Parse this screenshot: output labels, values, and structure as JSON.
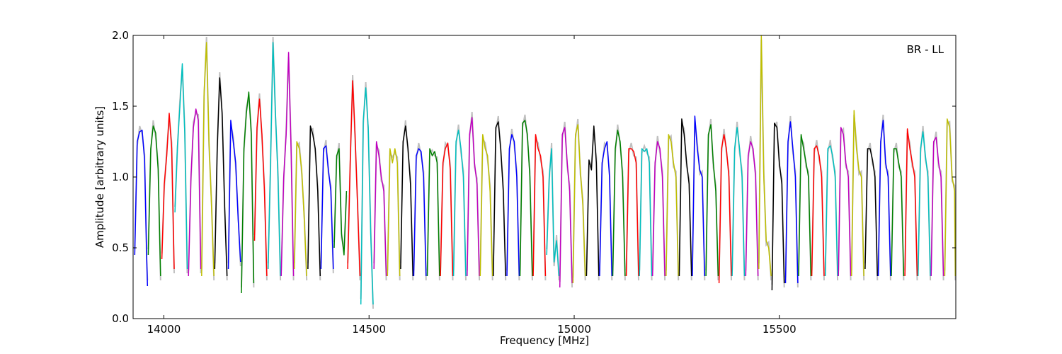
{
  "chart_data": {
    "type": "line",
    "title": "",
    "annotation": "BR - LL",
    "xlabel": "Frequency [MHz]",
    "ylabel": "Amplitude [arbitrary units]",
    "xlim": [
      13925,
      15930
    ],
    "ylim": [
      0.0,
      2.0
    ],
    "xticks": [
      14000,
      14500,
      15000,
      15500
    ],
    "xtick_labels": [
      "14000",
      "14500",
      "15000",
      "15500"
    ],
    "yticks": [
      0.0,
      0.5,
      1.0,
      1.5,
      2.0
    ],
    "ytick_labels": [
      "0.0",
      "0.5",
      "1.0",
      "1.5",
      "2.0"
    ],
    "grid": false,
    "legend": "none",
    "background_trace": {
      "color": "#c0c0c0",
      "description_value": "raw amplitude, light grey"
    },
    "colors": [
      "#0000ff",
      "#008000",
      "#ff0000",
      "#00bfbf",
      "#bf00bf",
      "#bfbf00",
      "#000000"
    ],
    "channel_width_mhz": 32,
    "series": [
      {
        "color": "#0000ff",
        "x": [
          13929,
          13935,
          13941,
          13947,
          13953,
          13958,
          13960
        ],
        "y": [
          0.45,
          1.25,
          1.32,
          1.33,
          1.12,
          0.45,
          0.23
        ]
      },
      {
        "color": "#008000",
        "x": [
          13962,
          13968,
          13974,
          13980,
          13986,
          13992
        ],
        "y": [
          0.45,
          1.2,
          1.36,
          1.31,
          1.05,
          0.3
        ]
      },
      {
        "color": "#ff0000",
        "x": [
          13995,
          14001,
          14007,
          14013,
          14019,
          14025
        ],
        "y": [
          0.42,
          0.95,
          1.15,
          1.45,
          1.2,
          0.35
        ]
      },
      {
        "color": "#00bfbf",
        "x": [
          14027,
          14033,
          14039,
          14045,
          14051,
          14057
        ],
        "y": [
          0.75,
          1.22,
          1.5,
          1.8,
          1.3,
          0.35
        ]
      },
      {
        "color": "#bf00bf",
        "x": [
          14060,
          14066,
          14072,
          14078,
          14084,
          14090
        ],
        "y": [
          0.3,
          1.0,
          1.35,
          1.48,
          1.4,
          0.35
        ]
      },
      {
        "color": "#bfbf00",
        "x": [
          14092,
          14098,
          14104,
          14110,
          14116,
          14122
        ],
        "y": [
          0.3,
          1.6,
          1.95,
          1.25,
          0.8,
          0.3
        ]
      },
      {
        "color": "#000000",
        "x": [
          14124,
          14130,
          14136,
          14142,
          14148,
          14154
        ],
        "y": [
          0.35,
          1.2,
          1.7,
          1.45,
          0.8,
          0.3
        ]
      },
      {
        "color": "#0000ff",
        "x": [
          14157,
          14163,
          14169,
          14175,
          14181,
          14187
        ],
        "y": [
          0.35,
          1.4,
          1.25,
          1.1,
          0.7,
          0.4
        ]
      },
      {
        "color": "#008000",
        "x": [
          14189,
          14195,
          14201,
          14207,
          14213,
          14219
        ],
        "y": [
          0.18,
          1.2,
          1.45,
          1.6,
          1.3,
          0.25
        ]
      },
      {
        "color": "#ff0000",
        "x": [
          14221,
          14227,
          14233,
          14239,
          14245,
          14251
        ],
        "y": [
          0.55,
          1.35,
          1.55,
          1.3,
          0.9,
          0.3
        ]
      },
      {
        "color": "#00bfbf",
        "x": [
          14254,
          14260,
          14266,
          14272,
          14278,
          14284
        ],
        "y": [
          0.35,
          1.1,
          1.95,
          1.45,
          1.0,
          0.3
        ]
      },
      {
        "color": "#bf00bf",
        "x": [
          14286,
          14292,
          14298,
          14304,
          14310,
          14316
        ],
        "y": [
          0.3,
          1.0,
          1.3,
          1.88,
          1.2,
          0.3
        ]
      },
      {
        "color": "#bfbf00",
        "x": [
          14318,
          14324,
          14330,
          14336,
          14342,
          14348
        ],
        "y": [
          0.35,
          1.25,
          1.2,
          1.05,
          0.7,
          0.3
        ]
      },
      {
        "color": "#000000",
        "x": [
          14351,
          14357,
          14363,
          14369,
          14375,
          14381
        ],
        "y": [
          0.35,
          1.36,
          1.3,
          1.2,
          0.9,
          0.3
        ]
      },
      {
        "color": "#0000ff",
        "x": [
          14383,
          14389,
          14395,
          14401,
          14407,
          14413
        ],
        "y": [
          0.35,
          1.2,
          1.22,
          1.05,
          0.9,
          0.35
        ]
      },
      {
        "color": "#008000",
        "x": [
          14415,
          14421,
          14427,
          14433,
          14439,
          14445
        ],
        "y": [
          0.5,
          1.15,
          1.2,
          0.6,
          0.45,
          0.9
        ]
      },
      {
        "color": "#ff0000",
        "x": [
          14448,
          14454,
          14460,
          14466,
          14472,
          14478
        ],
        "y": [
          0.35,
          1.1,
          1.68,
          1.3,
          0.8,
          0.3
        ]
      },
      {
        "color": "#00bfbf",
        "x": [
          14480,
          14486,
          14492,
          14498,
          14504,
          14510
        ],
        "y": [
          0.1,
          1.4,
          1.63,
          1.35,
          0.6,
          0.1
        ]
      },
      {
        "color": "#bf00bf",
        "x": [
          14512,
          14518,
          14524,
          14530,
          14536,
          14542
        ],
        "y": [
          0.35,
          1.25,
          1.15,
          1.0,
          0.9,
          0.3
        ]
      },
      {
        "color": "#bfbf00",
        "x": [
          14545,
          14551,
          14557,
          14563,
          14569,
          14575
        ],
        "y": [
          0.3,
          1.2,
          1.1,
          1.2,
          1.1,
          0.3
        ]
      },
      {
        "color": "#000000",
        "x": [
          14577,
          14583,
          14589,
          14595,
          14601,
          14607
        ],
        "y": [
          0.35,
          1.25,
          1.36,
          1.2,
          0.95,
          0.3
        ]
      },
      {
        "color": "#0000ff",
        "x": [
          14609,
          14615,
          14621,
          14627,
          14633,
          14639
        ],
        "y": [
          0.3,
          1.15,
          1.2,
          1.18,
          1.0,
          0.3
        ]
      },
      {
        "color": "#008000",
        "x": [
          14642,
          14648,
          14654,
          14660,
          14666,
          14672
        ],
        "y": [
          0.3,
          1.2,
          1.15,
          1.18,
          1.1,
          0.3
        ]
      },
      {
        "color": "#ff0000",
        "x": [
          14674,
          14680,
          14686,
          14692,
          14698,
          14704
        ],
        "y": [
          0.3,
          1.1,
          1.2,
          1.24,
          1.05,
          0.3
        ]
      },
      {
        "color": "#00bfbf",
        "x": [
          14706,
          14712,
          14718,
          14724,
          14730,
          14736
        ],
        "y": [
          0.3,
          1.25,
          1.33,
          1.2,
          1.0,
          0.3
        ]
      },
      {
        "color": "#bf00bf",
        "x": [
          14739,
          14745,
          14751,
          14757,
          14763,
          14769
        ],
        "y": [
          0.3,
          1.3,
          1.42,
          1.1,
          0.95,
          0.3
        ]
      },
      {
        "color": "#bfbf00",
        "x": [
          14771,
          14777,
          14783,
          14789,
          14795,
          14801
        ],
        "y": [
          0.3,
          1.3,
          1.2,
          1.15,
          0.9,
          0.3
        ]
      },
      {
        "color": "#000000",
        "x": [
          14803,
          14809,
          14815,
          14821,
          14827,
          14833
        ],
        "y": [
          0.3,
          1.35,
          1.39,
          1.2,
          0.9,
          0.3
        ]
      },
      {
        "color": "#0000ff",
        "x": [
          14836,
          14842,
          14848,
          14854,
          14860,
          14866
        ],
        "y": [
          0.3,
          1.2,
          1.3,
          1.25,
          1.0,
          0.3
        ]
      },
      {
        "color": "#008000",
        "x": [
          14868,
          14874,
          14880,
          14886,
          14892,
          14898
        ],
        "y": [
          0.3,
          1.38,
          1.4,
          1.3,
          1.0,
          0.3
        ]
      },
      {
        "color": "#ff0000",
        "x": [
          14900,
          14906,
          14912,
          14918,
          14924,
          14930
        ],
        "y": [
          0.3,
          1.3,
          1.2,
          1.15,
          1.0,
          0.3
        ]
      },
      {
        "color": "#00bfbf",
        "x": [
          14933,
          14939,
          14945,
          14951,
          14957,
          14963
        ],
        "y": [
          0.45,
          1.0,
          1.2,
          0.4,
          0.55,
          0.3
        ]
      },
      {
        "color": "#bf00bf",
        "x": [
          14965,
          14971,
          14977,
          14983,
          14989,
          14995
        ],
        "y": [
          0.22,
          1.3,
          1.35,
          1.1,
          0.9,
          0.25
        ]
      },
      {
        "color": "#bfbf00",
        "x": [
          14997,
          15003,
          15009,
          15015,
          15021,
          15027
        ],
        "y": [
          0.25,
          1.3,
          1.37,
          1.05,
          0.8,
          0.3
        ]
      },
      {
        "color": "#000000",
        "x": [
          15030,
          15036,
          15042,
          15048,
          15054,
          15060
        ],
        "y": [
          0.3,
          1.12,
          1.05,
          1.36,
          1.1,
          0.3
        ]
      },
      {
        "color": "#0000ff",
        "x": [
          15062,
          15068,
          15074,
          15080,
          15086,
          15092
        ],
        "y": [
          0.3,
          1.1,
          1.2,
          1.25,
          1.0,
          0.3
        ]
      },
      {
        "color": "#008000",
        "x": [
          15094,
          15100,
          15106,
          15112,
          15118,
          15124
        ],
        "y": [
          0.3,
          1.2,
          1.33,
          1.25,
          1.0,
          0.3
        ]
      },
      {
        "color": "#ff0000",
        "x": [
          15127,
          15133,
          15139,
          15145,
          15151,
          15157
        ],
        "y": [
          0.3,
          1.2,
          1.2,
          1.18,
          1.1,
          0.3
        ]
      },
      {
        "color": "#00bfbf",
        "x": [
          15159,
          15165,
          15171,
          15177,
          15183,
          15189
        ],
        "y": [
          0.3,
          1.2,
          1.18,
          1.2,
          1.1,
          0.3
        ]
      },
      {
        "color": "#bf00bf",
        "x": [
          15191,
          15197,
          15203,
          15209,
          15215,
          15221
        ],
        "y": [
          0.3,
          1.1,
          1.25,
          1.2,
          1.0,
          0.3
        ]
      },
      {
        "color": "#bfbf00",
        "x": [
          15224,
          15230,
          15236,
          15242,
          15248,
          15254
        ],
        "y": [
          0.3,
          1.3,
          1.25,
          1.1,
          1.0,
          0.3
        ]
      },
      {
        "color": "#000000",
        "x": [
          15256,
          15262,
          15268,
          15274,
          15280,
          15286
        ],
        "y": [
          0.3,
          1.41,
          1.3,
          1.1,
          0.95,
          0.3
        ]
      },
      {
        "color": "#0000ff",
        "x": [
          15288,
          15294,
          15300,
          15306,
          15312,
          15318
        ],
        "y": [
          0.3,
          1.43,
          1.2,
          1.05,
          1.0,
          0.3
        ]
      },
      {
        "color": "#008000",
        "x": [
          15321,
          15327,
          15333,
          15339,
          15345,
          15351
        ],
        "y": [
          0.3,
          1.3,
          1.37,
          1.1,
          0.9,
          0.3
        ]
      },
      {
        "color": "#ff0000",
        "x": [
          15353,
          15359,
          15365,
          15371,
          15377,
          15383
        ],
        "y": [
          0.25,
          1.2,
          1.3,
          1.2,
          1.0,
          0.3
        ]
      },
      {
        "color": "#00bfbf",
        "x": [
          15385,
          15391,
          15397,
          15403,
          15409,
          15415
        ],
        "y": [
          0.3,
          1.2,
          1.35,
          1.2,
          1.0,
          0.3
        ]
      },
      {
        "color": "#bf00bf",
        "x": [
          15418,
          15424,
          15430,
          15436,
          15442,
          15448
        ],
        "y": [
          0.3,
          1.15,
          1.25,
          1.2,
          1.0,
          0.3
        ]
      },
      {
        "color": "#bfbf00",
        "x": [
          15450,
          15456,
          15462,
          15468,
          15474,
          15480
        ],
        "y": [
          0.35,
          2.0,
          1.0,
          0.55,
          0.5,
          0.3
        ]
      },
      {
        "color": "#000000",
        "x": [
          15482,
          15488,
          15494,
          15500,
          15506,
          15512
        ],
        "y": [
          0.2,
          1.38,
          1.35,
          1.1,
          0.95,
          0.25
        ]
      },
      {
        "color": "#0000ff",
        "x": [
          15515,
          15521,
          15527,
          15533,
          15539,
          15545
        ],
        "y": [
          0.25,
          1.25,
          1.39,
          1.2,
          1.0,
          0.25
        ]
      },
      {
        "color": "#008000",
        "x": [
          15547,
          15553,
          15559,
          15565,
          15571,
          15577
        ],
        "y": [
          0.3,
          1.3,
          1.2,
          1.1,
          1.0,
          0.3
        ]
      },
      {
        "color": "#ff0000",
        "x": [
          15579,
          15585,
          15591,
          15597,
          15603,
          15609
        ],
        "y": [
          0.3,
          1.2,
          1.22,
          1.15,
          1.0,
          0.3
        ]
      },
      {
        "color": "#00bfbf",
        "x": [
          15612,
          15618,
          15624,
          15630,
          15636,
          15642
        ],
        "y": [
          0.3,
          1.2,
          1.22,
          1.15,
          1.0,
          0.3
        ]
      },
      {
        "color": "#bf00bf",
        "x": [
          15644,
          15650,
          15656,
          15662,
          15668,
          15674
        ],
        "y": [
          0.3,
          1.35,
          1.3,
          1.1,
          1.0,
          0.3
        ]
      },
      {
        "color": "#bfbf00",
        "x": [
          15676,
          15682,
          15688,
          15694,
          15700,
          15706
        ],
        "y": [
          0.3,
          1.47,
          1.2,
          1.05,
          1.0,
          0.3
        ]
      },
      {
        "color": "#000000",
        "x": [
          15709,
          15715,
          15721,
          15727,
          15733,
          15739
        ],
        "y": [
          0.35,
          1.2,
          1.2,
          1.12,
          1.0,
          0.3
        ]
      },
      {
        "color": "#0000ff",
        "x": [
          15741,
          15747,
          15753,
          15759,
          15765,
          15771
        ],
        "y": [
          0.3,
          1.25,
          1.4,
          1.1,
          1.0,
          0.3
        ]
      },
      {
        "color": "#008000",
        "x": [
          15773,
          15779,
          15785,
          15791,
          15797,
          15803
        ],
        "y": [
          0.3,
          1.2,
          1.2,
          1.1,
          1.0,
          0.3
        ]
      },
      {
        "color": "#ff0000",
        "x": [
          15806,
          15812,
          15818,
          15824,
          15830,
          15836
        ],
        "y": [
          0.3,
          1.34,
          1.2,
          1.1,
          1.0,
          0.3
        ]
      },
      {
        "color": "#00bfbf",
        "x": [
          15838,
          15844,
          15850,
          15856,
          15862,
          15868
        ],
        "y": [
          0.3,
          1.2,
          1.32,
          1.15,
          1.0,
          0.3
        ]
      },
      {
        "color": "#bf00bf",
        "x": [
          15870,
          15876,
          15882,
          15888,
          15894,
          15900
        ],
        "y": [
          0.3,
          1.25,
          1.28,
          1.1,
          1.0,
          0.3
        ]
      },
      {
        "color": "#bfbf00",
        "x": [
          15903,
          15909,
          15915,
          15921,
          15927,
          15929
        ],
        "y": [
          0.3,
          1.41,
          1.35,
          1.0,
          0.9,
          0.3
        ]
      }
    ]
  }
}
